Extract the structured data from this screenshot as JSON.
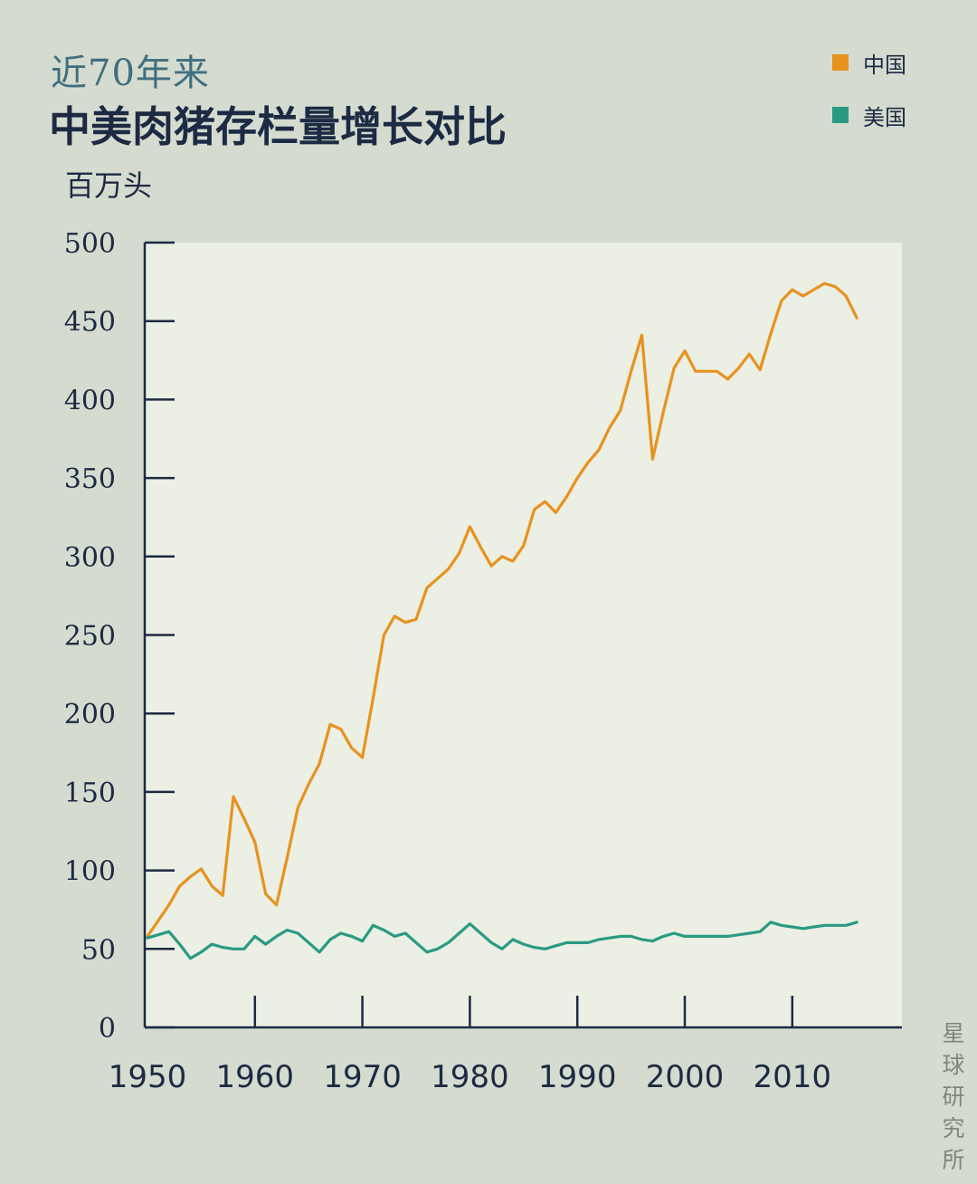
{
  "chart_data": {
    "type": "line",
    "subtitle": "近70年来",
    "title": "中美肉猪存栏量增长对比",
    "ylabel": "百万头",
    "xlabel": "",
    "ylim": [
      0,
      500
    ],
    "xlim": [
      1950,
      2020
    ],
    "yticks": [
      0,
      50,
      100,
      150,
      200,
      250,
      300,
      350,
      400,
      450,
      500
    ],
    "xticks": [
      1950,
      1960,
      1970,
      1980,
      1990,
      2000,
      2010
    ],
    "grid": false,
    "legend_position": "top-right",
    "series": [
      {
        "name": "中国",
        "color": "#e8921e",
        "points": [
          [
            1950,
            58
          ],
          [
            1951,
            68
          ],
          [
            1952,
            78
          ],
          [
            1953,
            90
          ],
          [
            1954,
            96
          ],
          [
            1955,
            101
          ],
          [
            1956,
            90
          ],
          [
            1957,
            84
          ],
          [
            1958,
            147
          ],
          [
            1959,
            133
          ],
          [
            1960,
            118
          ],
          [
            1961,
            85
          ],
          [
            1962,
            78
          ],
          [
            1963,
            108
          ],
          [
            1964,
            140
          ],
          [
            1965,
            155
          ],
          [
            1966,
            168
          ],
          [
            1967,
            193
          ],
          [
            1968,
            190
          ],
          [
            1969,
            178
          ],
          [
            1970,
            172
          ],
          [
            1971,
            210
          ],
          [
            1972,
            250
          ],
          [
            1973,
            262
          ],
          [
            1974,
            258
          ],
          [
            1975,
            260
          ],
          [
            1976,
            280
          ],
          [
            1977,
            286
          ],
          [
            1978,
            292
          ],
          [
            1979,
            302
          ],
          [
            1980,
            319
          ],
          [
            1981,
            306
          ],
          [
            1982,
            294
          ],
          [
            1983,
            300
          ],
          [
            1984,
            297
          ],
          [
            1985,
            307
          ],
          [
            1986,
            330
          ],
          [
            1987,
            335
          ],
          [
            1988,
            328
          ],
          [
            1989,
            338
          ],
          [
            1990,
            350
          ],
          [
            1991,
            360
          ],
          [
            1992,
            368
          ],
          [
            1993,
            382
          ],
          [
            1994,
            393
          ],
          [
            1995,
            418
          ],
          [
            1996,
            441
          ],
          [
            1997,
            362
          ],
          [
            1998,
            392
          ],
          [
            1999,
            420
          ],
          [
            2000,
            431
          ],
          [
            2001,
            418
          ],
          [
            2002,
            418
          ],
          [
            2003,
            418
          ],
          [
            2004,
            413
          ],
          [
            2005,
            420
          ],
          [
            2006,
            429
          ],
          [
            2007,
            419
          ],
          [
            2008,
            442
          ],
          [
            2009,
            463
          ],
          [
            2010,
            470
          ],
          [
            2011,
            466
          ],
          [
            2012,
            470
          ],
          [
            2013,
            474
          ],
          [
            2014,
            472
          ],
          [
            2015,
            466
          ],
          [
            2016,
            452
          ]
        ]
      },
      {
        "name": "美国",
        "color": "#2a9a82",
        "points": [
          [
            1950,
            57
          ],
          [
            1952,
            61
          ],
          [
            1953,
            53
          ],
          [
            1954,
            44
          ],
          [
            1955,
            48
          ],
          [
            1956,
            53
          ],
          [
            1957,
            51
          ],
          [
            1958,
            50
          ],
          [
            1959,
            50
          ],
          [
            1960,
            58
          ],
          [
            1961,
            53
          ],
          [
            1962,
            58
          ],
          [
            1963,
            62
          ],
          [
            1964,
            60
          ],
          [
            1965,
            54
          ],
          [
            1966,
            48
          ],
          [
            1967,
            56
          ],
          [
            1968,
            60
          ],
          [
            1969,
            58
          ],
          [
            1970,
            55
          ],
          [
            1971,
            65
          ],
          [
            1972,
            62
          ],
          [
            1973,
            58
          ],
          [
            1974,
            60
          ],
          [
            1975,
            54
          ],
          [
            1976,
            48
          ],
          [
            1977,
            50
          ],
          [
            1978,
            54
          ],
          [
            1979,
            60
          ],
          [
            1980,
            66
          ],
          [
            1981,
            60
          ],
          [
            1982,
            54
          ],
          [
            1983,
            50
          ],
          [
            1984,
            56
          ],
          [
            1985,
            53
          ],
          [
            1986,
            51
          ],
          [
            1987,
            50
          ],
          [
            1988,
            52
          ],
          [
            1989,
            54
          ],
          [
            1990,
            54
          ],
          [
            1991,
            54
          ],
          [
            1992,
            56
          ],
          [
            1993,
            57
          ],
          [
            1994,
            58
          ],
          [
            1995,
            58
          ],
          [
            1996,
            56
          ],
          [
            1997,
            55
          ],
          [
            1998,
            58
          ],
          [
            1999,
            60
          ],
          [
            2000,
            58
          ],
          [
            2001,
            58
          ],
          [
            2002,
            58
          ],
          [
            2003,
            58
          ],
          [
            2004,
            58
          ],
          [
            2005,
            59
          ],
          [
            2006,
            60
          ],
          [
            2007,
            61
          ],
          [
            2008,
            67
          ],
          [
            2009,
            65
          ],
          [
            2010,
            64
          ],
          [
            2011,
            63
          ],
          [
            2012,
            64
          ],
          [
            2013,
            65
          ],
          [
            2014,
            65
          ],
          [
            2015,
            65
          ],
          [
            2016,
            67
          ]
        ]
      }
    ]
  },
  "watermark": "星球研究所"
}
